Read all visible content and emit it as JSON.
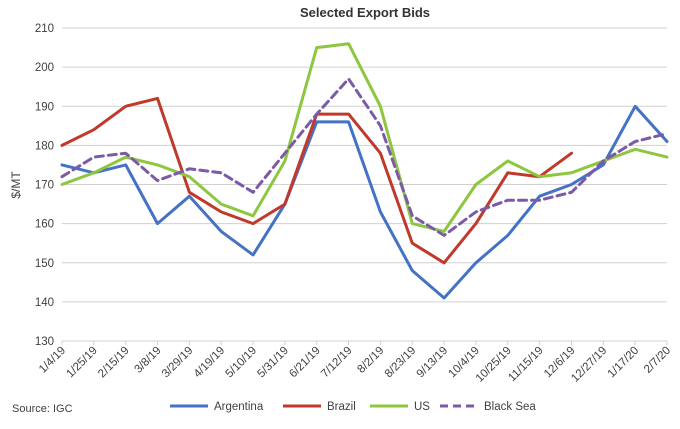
{
  "chart_data": {
    "type": "line",
    "title": "Selected Export Bids",
    "ylabel": "$/MT",
    "xlabel": "",
    "ylim": [
      130,
      210
    ],
    "yticks": [
      130,
      140,
      150,
      160,
      170,
      180,
      190,
      200,
      210
    ],
    "grid": "horizontal",
    "legend": "bottom",
    "x": [
      "1/4/19",
      "1/25/19",
      "2/15/19",
      "3/8/19",
      "3/29/19",
      "4/19/19",
      "5/10/19",
      "5/31/19",
      "6/21/19",
      "7/12/19",
      "8/2/19",
      "8/23/19",
      "9/13/19",
      "10/4/19",
      "10/25/19",
      "11/15/19",
      "12/6/19",
      "12/27/19",
      "1/17/20",
      "2/7/20"
    ],
    "series": [
      {
        "name": "Argentina",
        "color": "#4472C4",
        "style": "solid",
        "values": [
          175,
          173,
          175,
          160,
          167,
          158,
          152,
          165,
          186,
          186,
          163,
          148,
          141,
          150,
          157,
          167,
          170,
          175,
          190,
          181
        ]
      },
      {
        "name": "Brazil",
        "color": "#C0392B",
        "style": "solid",
        "values": [
          180,
          184,
          190,
          192,
          168,
          163,
          160,
          165,
          188,
          188,
          178,
          155,
          150,
          160,
          173,
          172,
          178,
          null,
          null,
          null
        ]
      },
      {
        "name": "US",
        "color": "#8DC63F",
        "style": "solid",
        "values": [
          170,
          173,
          177,
          175,
          172,
          165,
          162,
          176,
          205,
          206,
          190,
          160,
          158,
          170,
          176,
          172,
          173,
          176,
          179,
          177
        ]
      },
      {
        "name": "Black Sea",
        "color": "#7B5BA6",
        "style": "dashed",
        "values": [
          172,
          177,
          178,
          171,
          174,
          173,
          168,
          178,
          188,
          197,
          185,
          162,
          157,
          163,
          166,
          166,
          168,
          176,
          181,
          183
        ]
      }
    ]
  },
  "source": "Source: IGC"
}
